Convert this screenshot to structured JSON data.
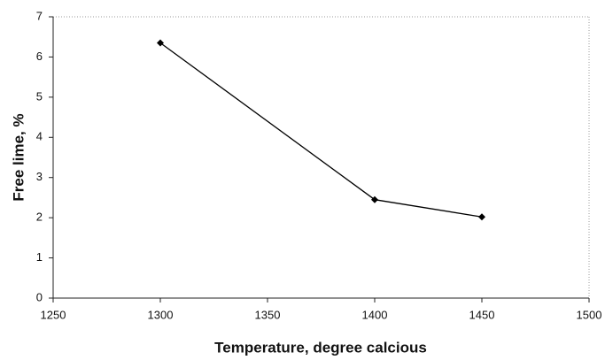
{
  "chart_data": {
    "type": "line",
    "x_label": "Temperature, degree calcious",
    "y_label": "Free lime, %",
    "x": [
      1300,
      1400,
      1450
    ],
    "series": [
      {
        "color": "#000000",
        "values": [
          6.35,
          2.45,
          2.02
        ]
      }
    ],
    "xlim": [
      1250,
      1500
    ],
    "xticks": [
      1250,
      1300,
      1350,
      1400,
      1450,
      1500
    ],
    "ylim": [
      0,
      7
    ],
    "yticks": [
      0,
      1,
      2,
      3,
      4,
      5,
      6,
      7
    ],
    "grid": false
  }
}
